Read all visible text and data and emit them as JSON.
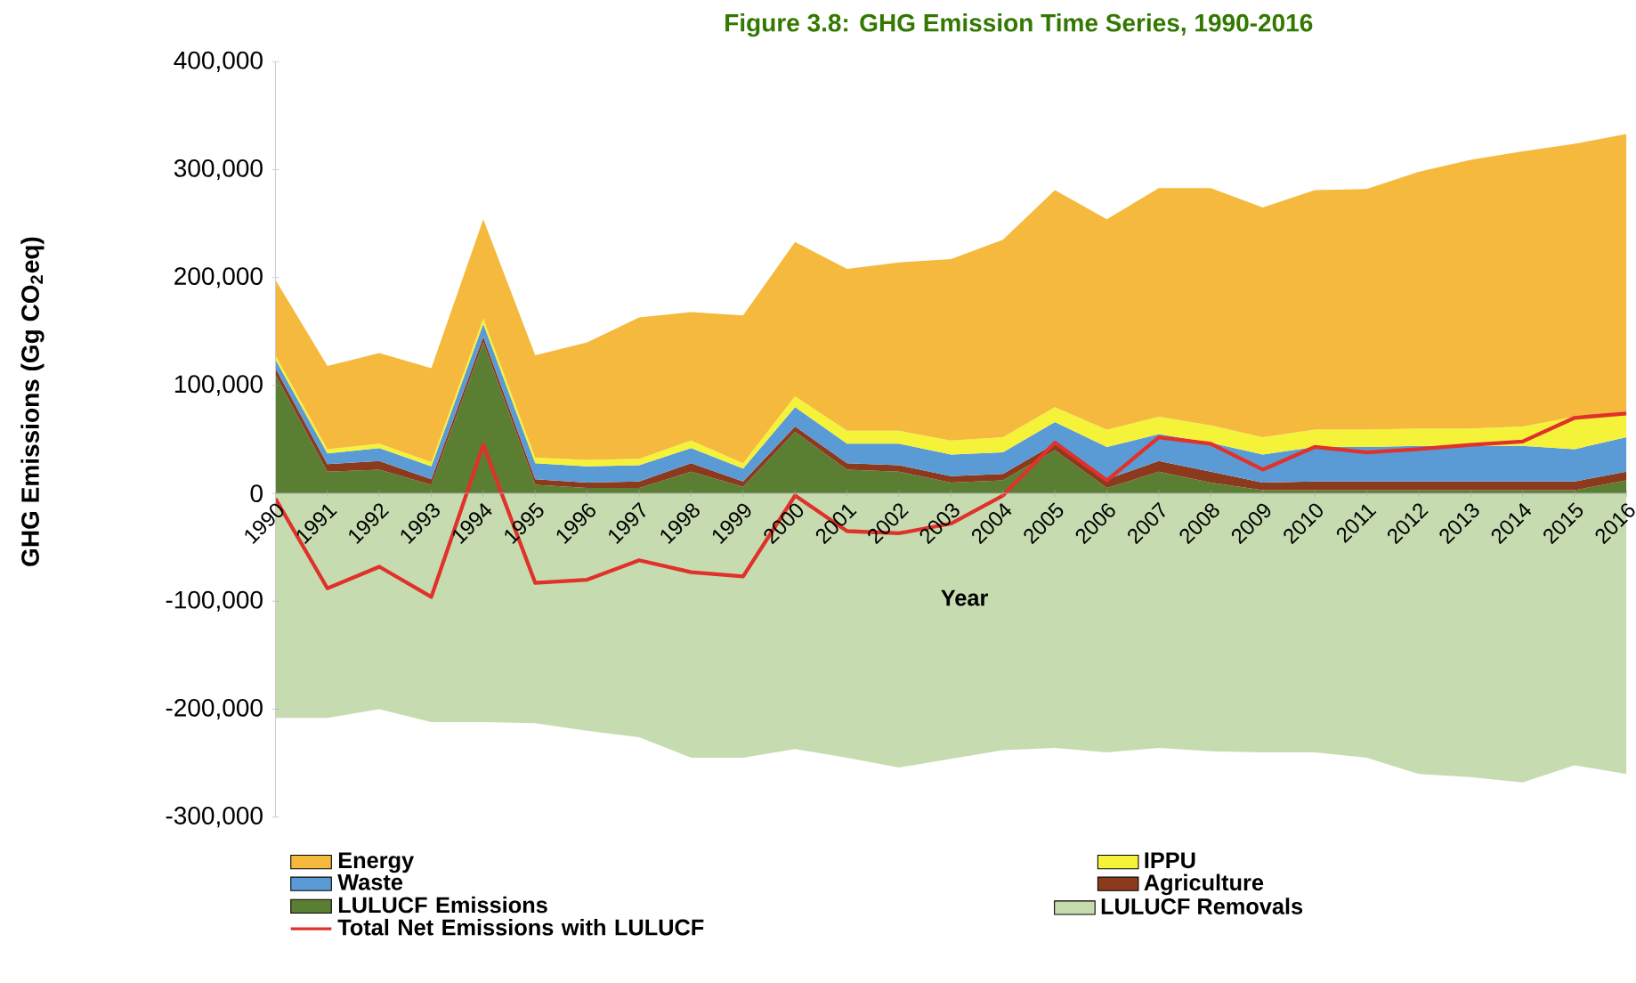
{
  "chart_data": [
    {
      "type": "area",
      "stacked": true,
      "title": "Figure 3.8: GHG Emission Time Series, 1990-2016",
      "xlabel": "Year",
      "ylabel": "GHG Emissions (Gg CO$_{2}$eq)",
      "categories": [
        "1990",
        "1991",
        "1992",
        "1993",
        "1994",
        "1995",
        "1996",
        "1997",
        "1998",
        "1999",
        "2000",
        "2001",
        "2002",
        "2003",
        "2004",
        "2005",
        "2006",
        "2007",
        "2008",
        "2009",
        "2010",
        "2011",
        "2012",
        "2013",
        "2014",
        "2015",
        "2016"
      ],
      "series": [
        {
          "name": "LULUCF Emissions",
          "color": "#5a7f33",
          "values": [
            110000,
            20000,
            22000,
            8000,
            140000,
            8000,
            5000,
            5000,
            20000,
            6000,
            57000,
            22000,
            20000,
            10000,
            12000,
            40000,
            5000,
            20000,
            10000,
            3000,
            3000,
            3000,
            3000,
            3000,
            3000,
            3000,
            12000
          ]
        },
        {
          "name": "Agriculture",
          "color": "#8b3a1e",
          "values": [
            6000,
            7000,
            8000,
            5000,
            5000,
            5000,
            5000,
            6000,
            8000,
            5000,
            5000,
            6000,
            6000,
            6000,
            6000,
            6000,
            8000,
            10000,
            10000,
            7000,
            8000,
            8000,
            8000,
            8000,
            8000,
            8000,
            8000
          ]
        },
        {
          "name": "Waste",
          "color": "#5b9bd5",
          "values": [
            8000,
            10000,
            12000,
            12000,
            12000,
            15000,
            15000,
            15000,
            14000,
            12000,
            18000,
            18000,
            20000,
            20000,
            20000,
            20000,
            30000,
            25000,
            27000,
            26000,
            32000,
            32000,
            33000,
            33000,
            33000,
            30000,
            32000
          ]
        },
        {
          "name": "IPPU",
          "color": "#f5f23a",
          "values": [
            4000,
            4000,
            4000,
            4000,
            5000,
            5000,
            6000,
            6000,
            7000,
            5000,
            10000,
            12000,
            12000,
            13000,
            14000,
            14000,
            16000,
            16000,
            16000,
            16000,
            16000,
            16000,
            16000,
            16000,
            18000,
            30000,
            23000
          ]
        },
        {
          "name": "Energy",
          "color": "#f5b93d",
          "values": [
            70000,
            77000,
            84000,
            87000,
            92000,
            95000,
            109000,
            131000,
            119000,
            137000,
            143000,
            150000,
            156000,
            168000,
            183000,
            201000,
            195000,
            212000,
            220000,
            213000,
            222000,
            223000,
            238000,
            249000,
            255000,
            253000,
            258000
          ]
        },
        {
          "name": "Total Net Emissions with LULUCF",
          "color": "#e0312b",
          "type": "line",
          "values": [
            -5000,
            -88000,
            -68000,
            -96000,
            45000,
            -83000,
            -80000,
            -62000,
            -73000,
            -77000,
            -2000,
            -35000,
            -37000,
            -28000,
            -2000,
            47000,
            12000,
            52000,
            46000,
            22000,
            43000,
            38000,
            41000,
            45000,
            48000,
            70000,
            74000
          ]
        }
      ],
      "ylim": [
        -300000,
        400000
      ],
      "yticks": [
        {
          "value": -300000,
          "label": "-300,000"
        },
        {
          "value": -200000,
          "label": "-200,000"
        },
        {
          "value": -100000,
          "label": "-100,000"
        },
        0,
        {
          "value": 100000,
          "label": "100,000"
        },
        {
          "value": 200000,
          "label": "200,000"
        },
        {
          "value": 300000,
          "label": "300,000"
        },
        {
          "value": 400000,
          "label": "400,000"
        }
      ],
      "legend": "bottom"
    },
    {
      "type": "area",
      "categories": [
        "1990",
        "1991",
        "1992",
        "1993",
        "1994",
        "1995",
        "1996",
        "1997",
        "1998",
        "1999",
        "2000",
        "2001",
        "2002",
        "2003",
        "2004",
        "2005",
        "2006",
        "2007",
        "2008",
        "2009",
        "2010",
        "2011",
        "2012",
        "2013",
        "2014",
        "2015",
        "2016"
      ],
      "series": [
        {
          "name": "LULUCF Removals",
          "color": "#c6dcb0",
          "values": [
            -208000,
            -208000,
            -200000,
            -212000,
            -212000,
            -213000,
            -220000,
            -226000,
            -245000,
            -245000,
            -237000,
            -245000,
            -254000,
            -246000,
            -238000,
            -236000,
            -240000,
            -236000,
            -239000,
            -240000,
            -240000,
            -245000,
            -260000,
            -263000,
            -268000,
            -252000,
            -260000
          ]
        }
      ],
      "ylim": [
        -300000,
        400000
      ],
      "tick_labels": false,
      "legend": "bottom"
    }
  ]
}
